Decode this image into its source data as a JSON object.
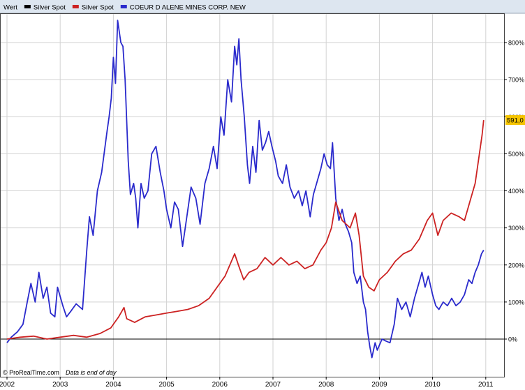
{
  "legend": {
    "items": [
      {
        "label": "Wert",
        "color": "#000000",
        "swatch": false
      },
      {
        "label": "Silver Spot",
        "color": "#000000",
        "swatch": true
      },
      {
        "label": "Silver Spot",
        "color": "#cc2222",
        "swatch": true
      },
      {
        "label": "COEUR D ALENE MINES CORP. NEW",
        "color": "#2a2acc",
        "swatch": true
      }
    ]
  },
  "footer": {
    "credit": "© ProRealTime.com",
    "note": "Data is end of day"
  },
  "badge": {
    "value_label": "591,0",
    "color": "#f5c400"
  },
  "colors": {
    "background": "#ffffff",
    "grid": "#d2d2d2",
    "frame": "#9aa6b4",
    "legend_bg": "#dde6f0",
    "silver": "#cc2222",
    "coeur": "#2a2acc"
  },
  "chart_data": {
    "type": "line",
    "x_unit": "year",
    "xlim": [
      2002.0,
      2011.07
    ],
    "ylim": [
      -60,
      880
    ],
    "y_unit": "%",
    "y_scale": "linear",
    "grid": true,
    "legend_position": "top-left",
    "x_ticks": [
      {
        "value": 2002,
        "label": "2002"
      },
      {
        "value": 2003,
        "label": "2003"
      },
      {
        "value": 2004,
        "label": "2004"
      },
      {
        "value": 2005,
        "label": "2005"
      },
      {
        "value": 2006,
        "label": "2006"
      },
      {
        "value": 2007,
        "label": "2007"
      },
      {
        "value": 2008,
        "label": "2008"
      },
      {
        "value": 2009,
        "label": "2009"
      },
      {
        "value": 2010,
        "label": "2010"
      },
      {
        "value": 2011,
        "label": "2011"
      }
    ],
    "y_ticks": [
      {
        "value": 0,
        "label": "0%"
      },
      {
        "value": 100,
        "label": "100%"
      },
      {
        "value": 200,
        "label": "200%"
      },
      {
        "value": 300,
        "label": "300%"
      },
      {
        "value": 400,
        "label": "400%"
      },
      {
        "value": 500,
        "label": "500%"
      },
      {
        "value": 600,
        "label": "600%"
      },
      {
        "value": 700,
        "label": "700%"
      },
      {
        "value": 800,
        "label": "800%"
      }
    ],
    "series": [
      {
        "name": "COEUR D ALENE MINES CORP. NEW",
        "color": "#2a2acc",
        "points": [
          [
            2002.0,
            -10
          ],
          [
            2002.08,
            5
          ],
          [
            2002.2,
            20
          ],
          [
            2002.3,
            40
          ],
          [
            2002.38,
            100
          ],
          [
            2002.45,
            150
          ],
          [
            2002.53,
            100
          ],
          [
            2002.6,
            180
          ],
          [
            2002.68,
            110
          ],
          [
            2002.75,
            140
          ],
          [
            2002.82,
            70
          ],
          [
            2002.9,
            60
          ],
          [
            2002.95,
            140
          ],
          [
            2003.05,
            90
          ],
          [
            2003.12,
            60
          ],
          [
            2003.2,
            75
          ],
          [
            2003.3,
            95
          ],
          [
            2003.42,
            80
          ],
          [
            2003.5,
            240
          ],
          [
            2003.55,
            330
          ],
          [
            2003.62,
            280
          ],
          [
            2003.7,
            400
          ],
          [
            2003.78,
            450
          ],
          [
            2003.88,
            560
          ],
          [
            2003.92,
            600
          ],
          [
            2003.96,
            650
          ],
          [
            2004.0,
            760
          ],
          [
            2004.04,
            690
          ],
          [
            2004.08,
            860
          ],
          [
            2004.14,
            800
          ],
          [
            2004.18,
            790
          ],
          [
            2004.22,
            700
          ],
          [
            2004.28,
            480
          ],
          [
            2004.32,
            390
          ],
          [
            2004.38,
            420
          ],
          [
            2004.42,
            380
          ],
          [
            2004.46,
            300
          ],
          [
            2004.52,
            420
          ],
          [
            2004.58,
            380
          ],
          [
            2004.65,
            400
          ],
          [
            2004.72,
            500
          ],
          [
            2004.8,
            520
          ],
          [
            2004.88,
            450
          ],
          [
            2004.95,
            400
          ],
          [
            2005.0,
            350
          ],
          [
            2005.08,
            300
          ],
          [
            2005.15,
            370
          ],
          [
            2005.22,
            350
          ],
          [
            2005.3,
            250
          ],
          [
            2005.38,
            330
          ],
          [
            2005.46,
            410
          ],
          [
            2005.55,
            380
          ],
          [
            2005.63,
            310
          ],
          [
            2005.72,
            420
          ],
          [
            2005.8,
            460
          ],
          [
            2005.88,
            520
          ],
          [
            2005.95,
            460
          ],
          [
            2006.02,
            600
          ],
          [
            2006.08,
            550
          ],
          [
            2006.15,
            700
          ],
          [
            2006.22,
            640
          ],
          [
            2006.28,
            790
          ],
          [
            2006.32,
            740
          ],
          [
            2006.36,
            810
          ],
          [
            2006.4,
            700
          ],
          [
            2006.46,
            600
          ],
          [
            2006.52,
            470
          ],
          [
            2006.56,
            420
          ],
          [
            2006.62,
            520
          ],
          [
            2006.68,
            450
          ],
          [
            2006.74,
            590
          ],
          [
            2006.8,
            510
          ],
          [
            2006.86,
            530
          ],
          [
            2006.92,
            560
          ],
          [
            2006.98,
            520
          ],
          [
            2007.05,
            480
          ],
          [
            2007.1,
            440
          ],
          [
            2007.18,
            420
          ],
          [
            2007.25,
            470
          ],
          [
            2007.32,
            410
          ],
          [
            2007.4,
            380
          ],
          [
            2007.48,
            400
          ],
          [
            2007.55,
            360
          ],
          [
            2007.62,
            400
          ],
          [
            2007.7,
            330
          ],
          [
            2007.76,
            390
          ],
          [
            2007.82,
            420
          ],
          [
            2007.9,
            460
          ],
          [
            2007.96,
            500
          ],
          [
            2008.02,
            470
          ],
          [
            2008.08,
            460
          ],
          [
            2008.12,
            530
          ],
          [
            2008.18,
            380
          ],
          [
            2008.24,
            320
          ],
          [
            2008.3,
            350
          ],
          [
            2008.36,
            310
          ],
          [
            2008.42,
            290
          ],
          [
            2008.48,
            260
          ],
          [
            2008.52,
            180
          ],
          [
            2008.58,
            150
          ],
          [
            2008.64,
            170
          ],
          [
            2008.7,
            100
          ],
          [
            2008.74,
            80
          ],
          [
            2008.78,
            20
          ],
          [
            2008.82,
            -20
          ],
          [
            2008.86,
            -50
          ],
          [
            2008.92,
            -10
          ],
          [
            2008.96,
            -30
          ],
          [
            2009.05,
            0
          ],
          [
            2009.12,
            -5
          ],
          [
            2009.2,
            -10
          ],
          [
            2009.28,
            40
          ],
          [
            2009.34,
            110
          ],
          [
            2009.42,
            80
          ],
          [
            2009.5,
            100
          ],
          [
            2009.58,
            60
          ],
          [
            2009.66,
            110
          ],
          [
            2009.72,
            140
          ],
          [
            2009.8,
            180
          ],
          [
            2009.86,
            140
          ],
          [
            2009.92,
            170
          ],
          [
            2010.0,
            120
          ],
          [
            2010.06,
            90
          ],
          [
            2010.12,
            80
          ],
          [
            2010.2,
            100
          ],
          [
            2010.28,
            90
          ],
          [
            2010.36,
            110
          ],
          [
            2010.44,
            90
          ],
          [
            2010.52,
            100
          ],
          [
            2010.6,
            120
          ],
          [
            2010.68,
            160
          ],
          [
            2010.74,
            150
          ],
          [
            2010.8,
            180
          ],
          [
            2010.86,
            200
          ],
          [
            2010.92,
            230
          ],
          [
            2010.96,
            240
          ]
        ]
      },
      {
        "name": "Silver Spot",
        "color": "#cc2222",
        "points": [
          [
            2002.0,
            0
          ],
          [
            2002.25,
            5
          ],
          [
            2002.5,
            8
          ],
          [
            2002.75,
            0
          ],
          [
            2003.0,
            5
          ],
          [
            2003.25,
            10
          ],
          [
            2003.5,
            5
          ],
          [
            2003.75,
            15
          ],
          [
            2003.95,
            30
          ],
          [
            2004.1,
            60
          ],
          [
            2004.2,
            85
          ],
          [
            2004.25,
            55
          ],
          [
            2004.4,
            45
          ],
          [
            2004.6,
            60
          ],
          [
            2004.8,
            65
          ],
          [
            2005.0,
            70
          ],
          [
            2005.2,
            75
          ],
          [
            2005.4,
            80
          ],
          [
            2005.6,
            90
          ],
          [
            2005.8,
            110
          ],
          [
            2005.95,
            140
          ],
          [
            2006.1,
            170
          ],
          [
            2006.28,
            230
          ],
          [
            2006.35,
            200
          ],
          [
            2006.45,
            160
          ],
          [
            2006.55,
            180
          ],
          [
            2006.7,
            190
          ],
          [
            2006.85,
            220
          ],
          [
            2007.0,
            200
          ],
          [
            2007.15,
            220
          ],
          [
            2007.3,
            200
          ],
          [
            2007.45,
            210
          ],
          [
            2007.6,
            190
          ],
          [
            2007.75,
            200
          ],
          [
            2007.9,
            240
          ],
          [
            2008.0,
            260
          ],
          [
            2008.1,
            300
          ],
          [
            2008.18,
            370
          ],
          [
            2008.3,
            320
          ],
          [
            2008.45,
            300
          ],
          [
            2008.55,
            340
          ],
          [
            2008.62,
            280
          ],
          [
            2008.7,
            170
          ],
          [
            2008.8,
            140
          ],
          [
            2008.9,
            130
          ],
          [
            2009.0,
            160
          ],
          [
            2009.15,
            180
          ],
          [
            2009.3,
            210
          ],
          [
            2009.45,
            230
          ],
          [
            2009.6,
            240
          ],
          [
            2009.75,
            270
          ],
          [
            2009.9,
            320
          ],
          [
            2010.0,
            340
          ],
          [
            2010.1,
            280
          ],
          [
            2010.2,
            320
          ],
          [
            2010.35,
            340
          ],
          [
            2010.5,
            330
          ],
          [
            2010.6,
            320
          ],
          [
            2010.7,
            370
          ],
          [
            2010.8,
            420
          ],
          [
            2010.88,
            500
          ],
          [
            2010.93,
            550
          ],
          [
            2010.96,
            591
          ]
        ]
      }
    ]
  }
}
